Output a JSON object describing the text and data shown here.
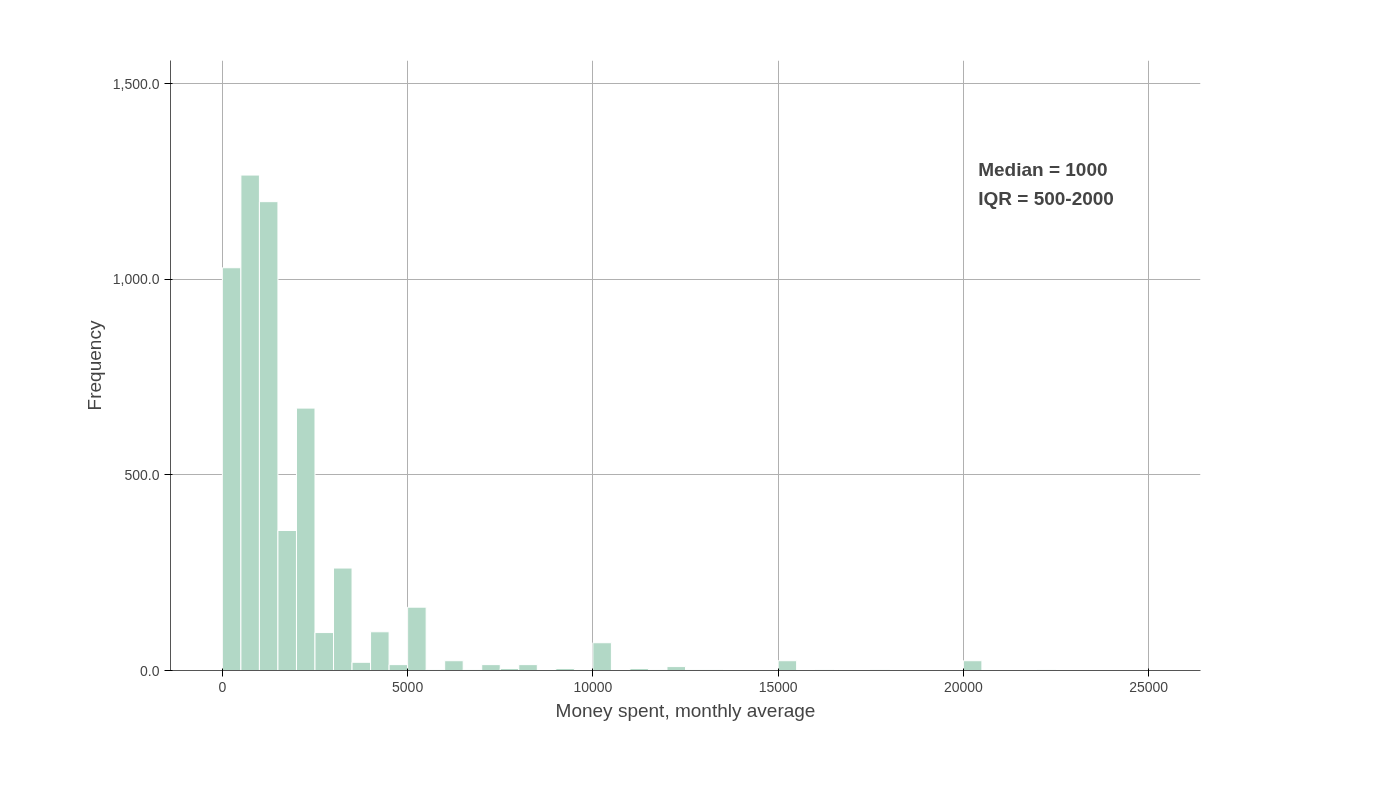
{
  "chart_data": {
    "type": "histogram",
    "xlabel": "Money spent, monthly average",
    "ylabel": "Frequency",
    "bins": [
      0,
      500,
      1000,
      1500,
      2000,
      2500,
      3000,
      3500,
      4000,
      4500,
      5000,
      5500,
      6000,
      6500,
      7000,
      7500,
      8000,
      8500,
      9000,
      9500,
      10000,
      10500,
      11000,
      11500,
      12000,
      12500,
      13000,
      13500,
      14000,
      14500,
      15000,
      15500,
      16000,
      16500,
      17000,
      17500,
      18000,
      18500,
      19000,
      19500,
      20000,
      20500,
      21000,
      21500,
      22000,
      22500
    ],
    "values": [
      1030,
      1267,
      1199,
      358,
      671,
      97,
      262,
      21,
      99,
      15,
      162,
      2,
      25,
      2,
      15,
      5,
      15,
      0,
      5,
      0,
      71,
      0,
      5,
      2,
      10,
      2,
      2,
      0,
      0,
      0,
      25,
      0,
      2,
      0,
      0,
      2,
      0,
      0,
      0,
      0,
      25,
      0,
      0,
      0,
      2
    ],
    "color": "#b2d8c6",
    "xlim": [
      -1400,
      26400
    ],
    "ylim": [
      0,
      1560
    ],
    "xticks": [
      0,
      5000,
      10000,
      15000,
      20000,
      25000
    ],
    "yticks": [
      {
        "value": 0,
        "label": "0.0"
      },
      {
        "value": 500,
        "label": "500.0"
      },
      {
        "value": 1000,
        "label": "1,000.0"
      },
      {
        "value": 1500,
        "label": "1,500.0"
      }
    ],
    "grid": true,
    "annotations": [
      "Median = 1000",
      "IQR = 500-2000"
    ]
  }
}
